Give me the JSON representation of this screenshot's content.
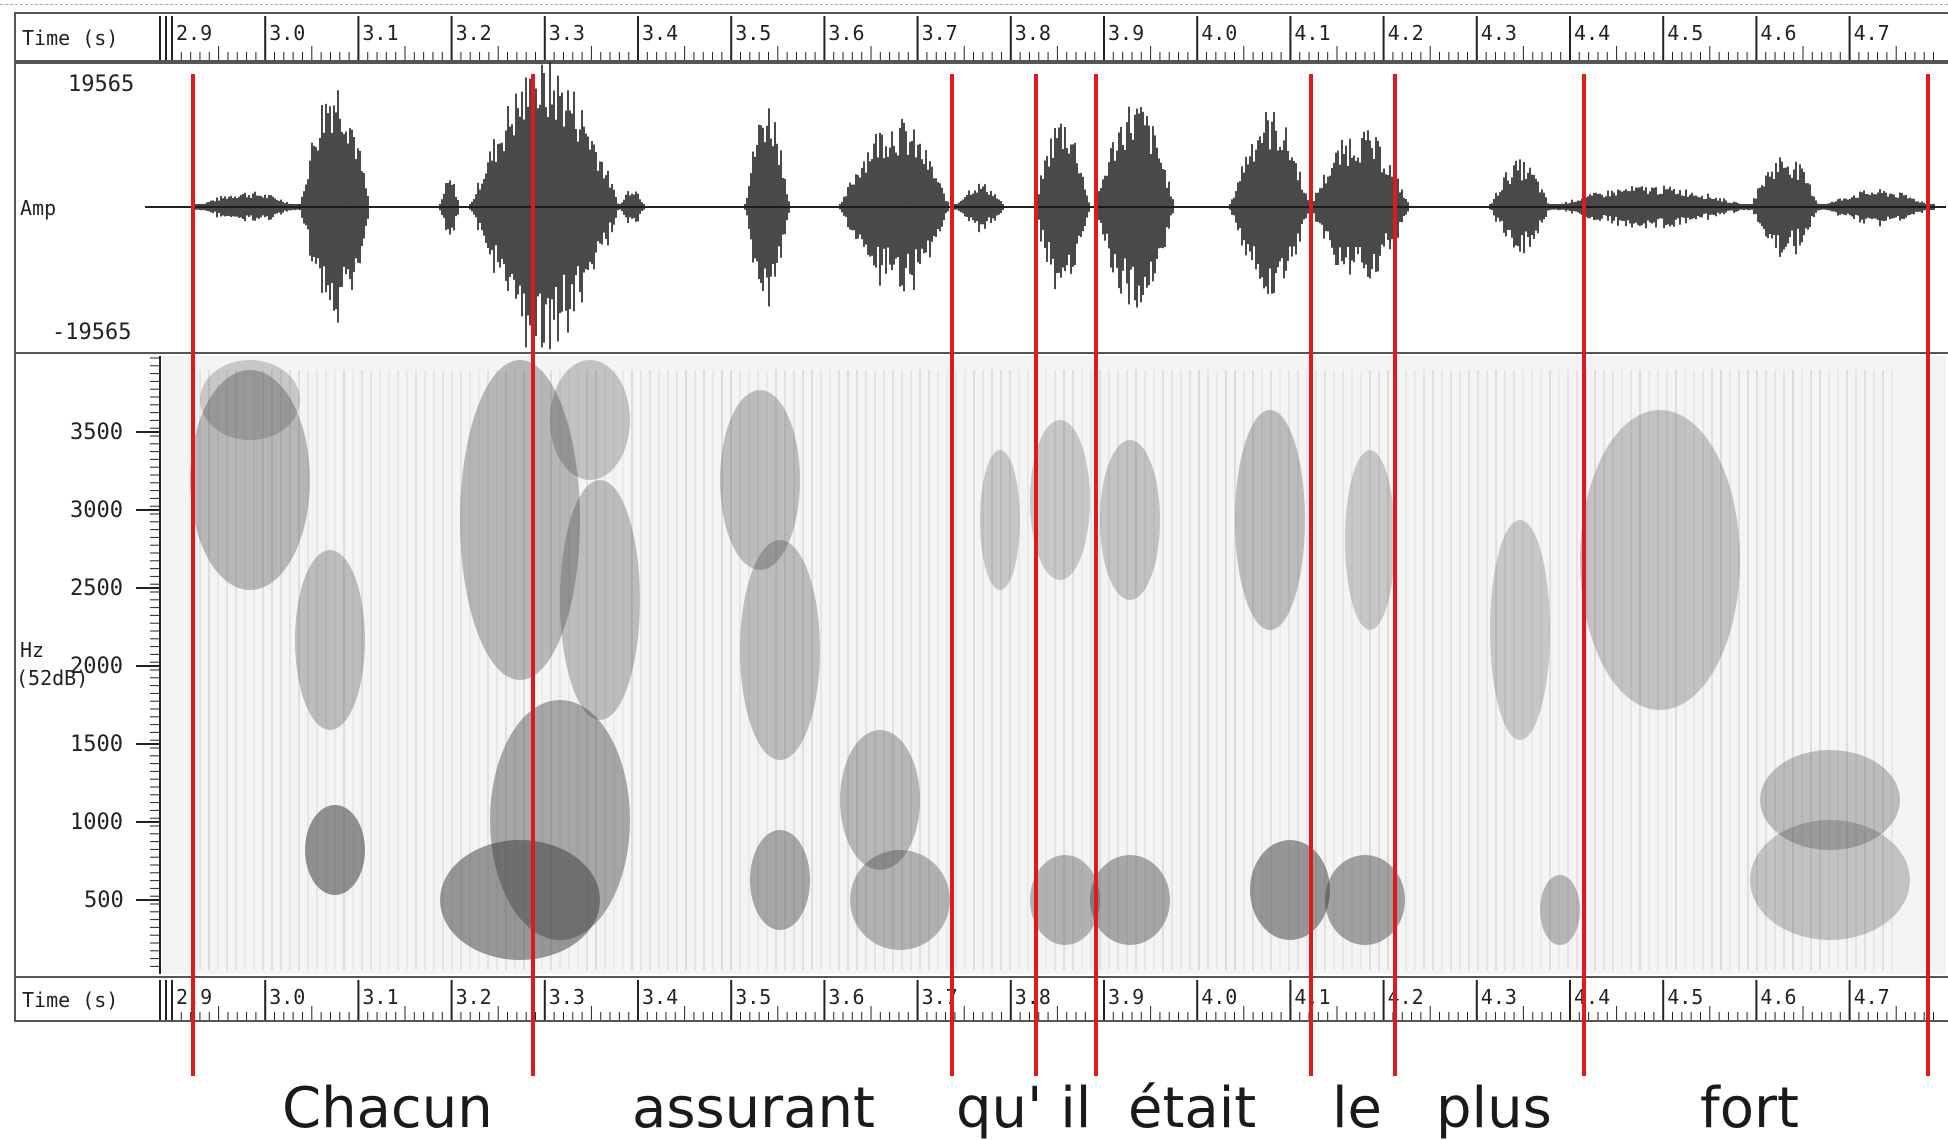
{
  "time_axis_label": "Time (s)",
  "time_ticks": [
    "2.9",
    "3.0",
    "3.1",
    "3.2",
    "3.3",
    "3.4",
    "3.5",
    "3.6",
    "3.7",
    "3.8",
    "3.9",
    "4.0",
    "4.1",
    "4.2",
    "4.3",
    "4.4",
    "4.5",
    "4.6",
    "4.7"
  ],
  "amplitude": {
    "max_label": "19565",
    "mid_label": "Amp",
    "min_label": "-19565"
  },
  "spectrogram": {
    "freq_label": "Hz",
    "db_label": "(52dB)",
    "freq_ticks": [
      "3500",
      "3000",
      "2500",
      "2000",
      "1500",
      "1000",
      "500"
    ]
  },
  "words": [
    "Chacun",
    "assurant",
    "qu' il",
    "était",
    "le",
    "plus",
    "fort"
  ],
  "colors": {
    "boundary": "#e0191e",
    "ink": "#222222"
  }
}
